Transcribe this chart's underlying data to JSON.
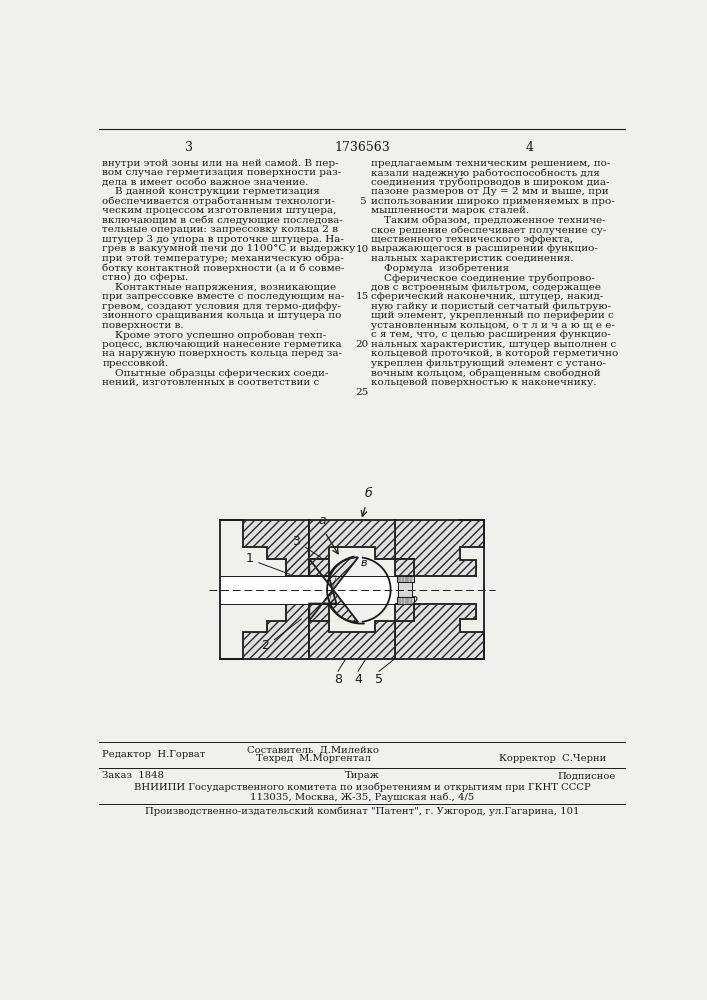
{
  "background_color": "#f0f0ec",
  "page_number_left": "3",
  "patent_number_center": "1736563",
  "page_number_right": "4",
  "left_column_text": [
    "внутри этой зоны или на ней самой. В пер-",
    "вом случае герметизация поверхности раз-",
    "дела в имеет особо важное значение.",
    "    В данной конструкции герметизация",
    "обеспечивается отработанным технологи-",
    "ческим процессом изготовления штуцера,",
    "включающим в себя следующие последова-",
    "тельные операции: запрессовку кольца 2 в",
    "штуцер 3 до упора в проточке штуцера. На-",
    "грев в вакуумной печи до 1100°С и выдержку",
    "при этой температуре; механическую обра-",
    "ботку контактной поверхности (а и б совме-",
    "стно) до сферы.",
    "    Контактные напряжения, возникающие",
    "при запрессовке вместе с последующим на-",
    "гревом, создают условия для термо-диффу-",
    "зионного сращивания кольца и штуцера по",
    "поверхности в.",
    "    Кроме этого успешно опробован техп-",
    "роцесс, включающий нанесение герметика",
    "на наружную поверхность кольца перед за-",
    "прессовкой.",
    "    Опытные образцы сферических соеди-",
    "нений, изготовленных в соответствии с"
  ],
  "right_column_text": [
    "предлагаемым техническим решением, по-",
    "казали надежную работоспособность для",
    "соединения трубопроводов в широком диа-",
    "пазоне размеров от Ду = 2 мм и выше, при",
    "использовании широко применяемых в про-",
    "мышленности марок сталей.",
    "    Таким образом, предложенное техниче-",
    "ское решение обеспечивает получение су-",
    "щественного технического эффекта,",
    "выражающегося в расширении функцио-",
    "нальных характеристик соединения.",
    "    Формула  изобретения",
    "    Сферическое соединение трубопрово-",
    "дов с встроенным фильтром, содержащее",
    "сферический наконечник, штуцер, накид-",
    "ную гайку и пористый сетчатый фильтрую-",
    "щий элемент, укрепленный по периферии с",
    "установленным кольцом, о т л и ч а ю щ е е-",
    "с я тем, что, с целью расширения функцио-",
    "нальных характеристик, штуцер выполнен с",
    "кольцевой проточкой, в которой герметично",
    "укреплен фильтрующий элемент с устано-",
    "вочным кольцом, обращенным свободной",
    "кольцевой поверхностью к наконечнику."
  ],
  "line_numbers": [
    [
      "5",
      4
    ],
    [
      "10",
      9
    ],
    [
      "15",
      14
    ],
    [
      "20",
      19
    ],
    [
      "25",
      24
    ]
  ],
  "footer_editor": "Редактор  Н.Горват",
  "footer_composer": "Составитель  Д.Милейко",
  "footer_techred": "Техред  М.Моргентал",
  "footer_corrector": "Корректор  С.Черни",
  "footer_order": "Заказ  1848",
  "footer_tirazh": "Тираж",
  "footer_podpisnoe": "Подписное",
  "footer_vniipii": "ВНИИПИ Государственного комитета по изобретениям и открытиям при ГКНТ СССР",
  "footer_address": "113035, Москва, Ж-35, Раушская наб., 4/5",
  "footer_publisher": "Производственно-издательский комбинат \"Патент\", г. Ужгород, ул.Гагарина, 101",
  "text_color": "#1a1a1a",
  "font_size_body": 7.5,
  "font_size_header": 9.0,
  "font_size_footer": 7.2,
  "font_size_label": 9.0
}
